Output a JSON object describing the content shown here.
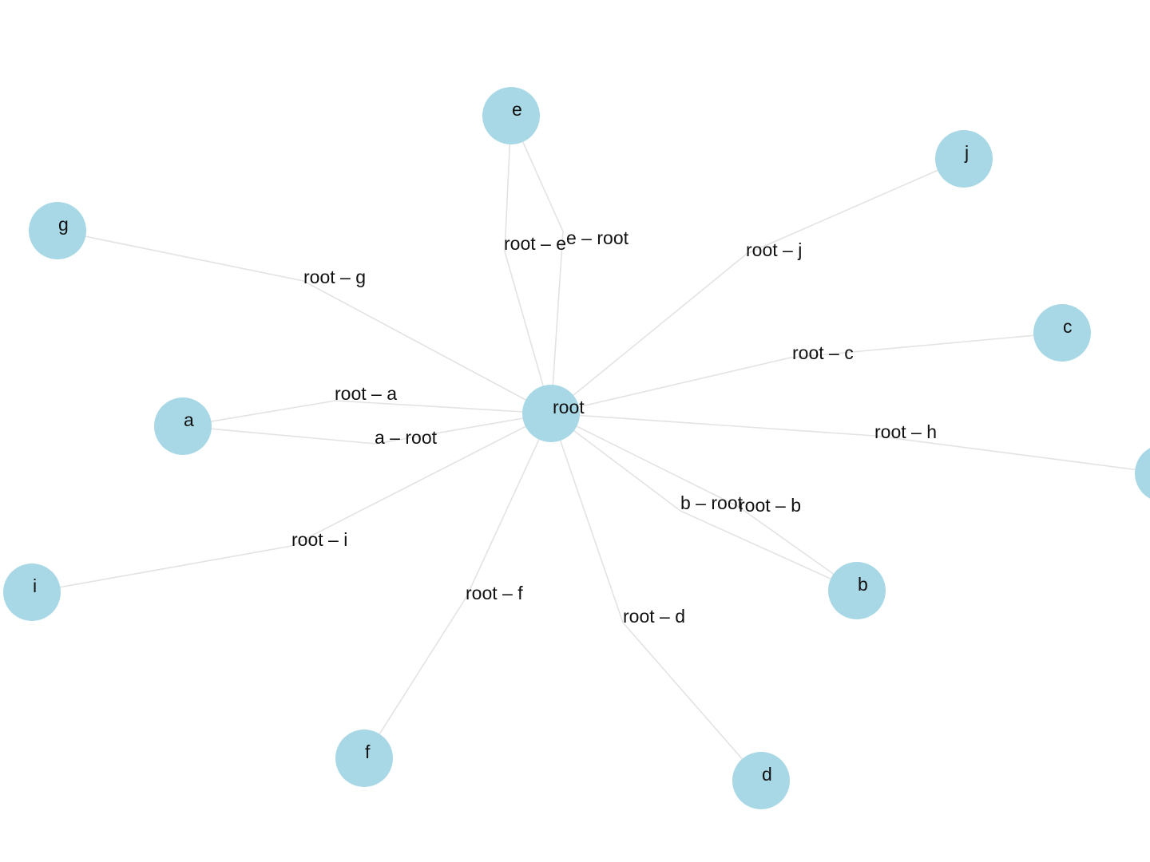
{
  "graph": {
    "node_color": "#a8d8e6",
    "edge_color": "#e3e3e3",
    "nodes": [
      "root",
      "e",
      "j",
      "g",
      "c",
      "a",
      "h",
      "i",
      "b",
      "f",
      "d"
    ],
    "edges": [
      {
        "source": "root",
        "target": "g",
        "label": "root – g"
      },
      {
        "source": "root",
        "target": "e",
        "label": "root – e"
      },
      {
        "source": "e",
        "target": "root",
        "label": "e – root"
      },
      {
        "source": "root",
        "target": "j",
        "label": "root – j"
      },
      {
        "source": "root",
        "target": "c",
        "label": "root – c"
      },
      {
        "source": "root",
        "target": "a",
        "label": "root – a"
      },
      {
        "source": "a",
        "target": "root",
        "label": "a – root"
      },
      {
        "source": "root",
        "target": "h",
        "label": "root – h"
      },
      {
        "source": "b",
        "target": "root",
        "label": "b – root"
      },
      {
        "source": "root",
        "target": "b",
        "label": "root – b"
      },
      {
        "source": "root",
        "target": "i",
        "label": "root – i"
      },
      {
        "source": "root",
        "target": "f",
        "label": "root – f"
      },
      {
        "source": "root",
        "target": "d",
        "label": "root – d"
      }
    ]
  }
}
